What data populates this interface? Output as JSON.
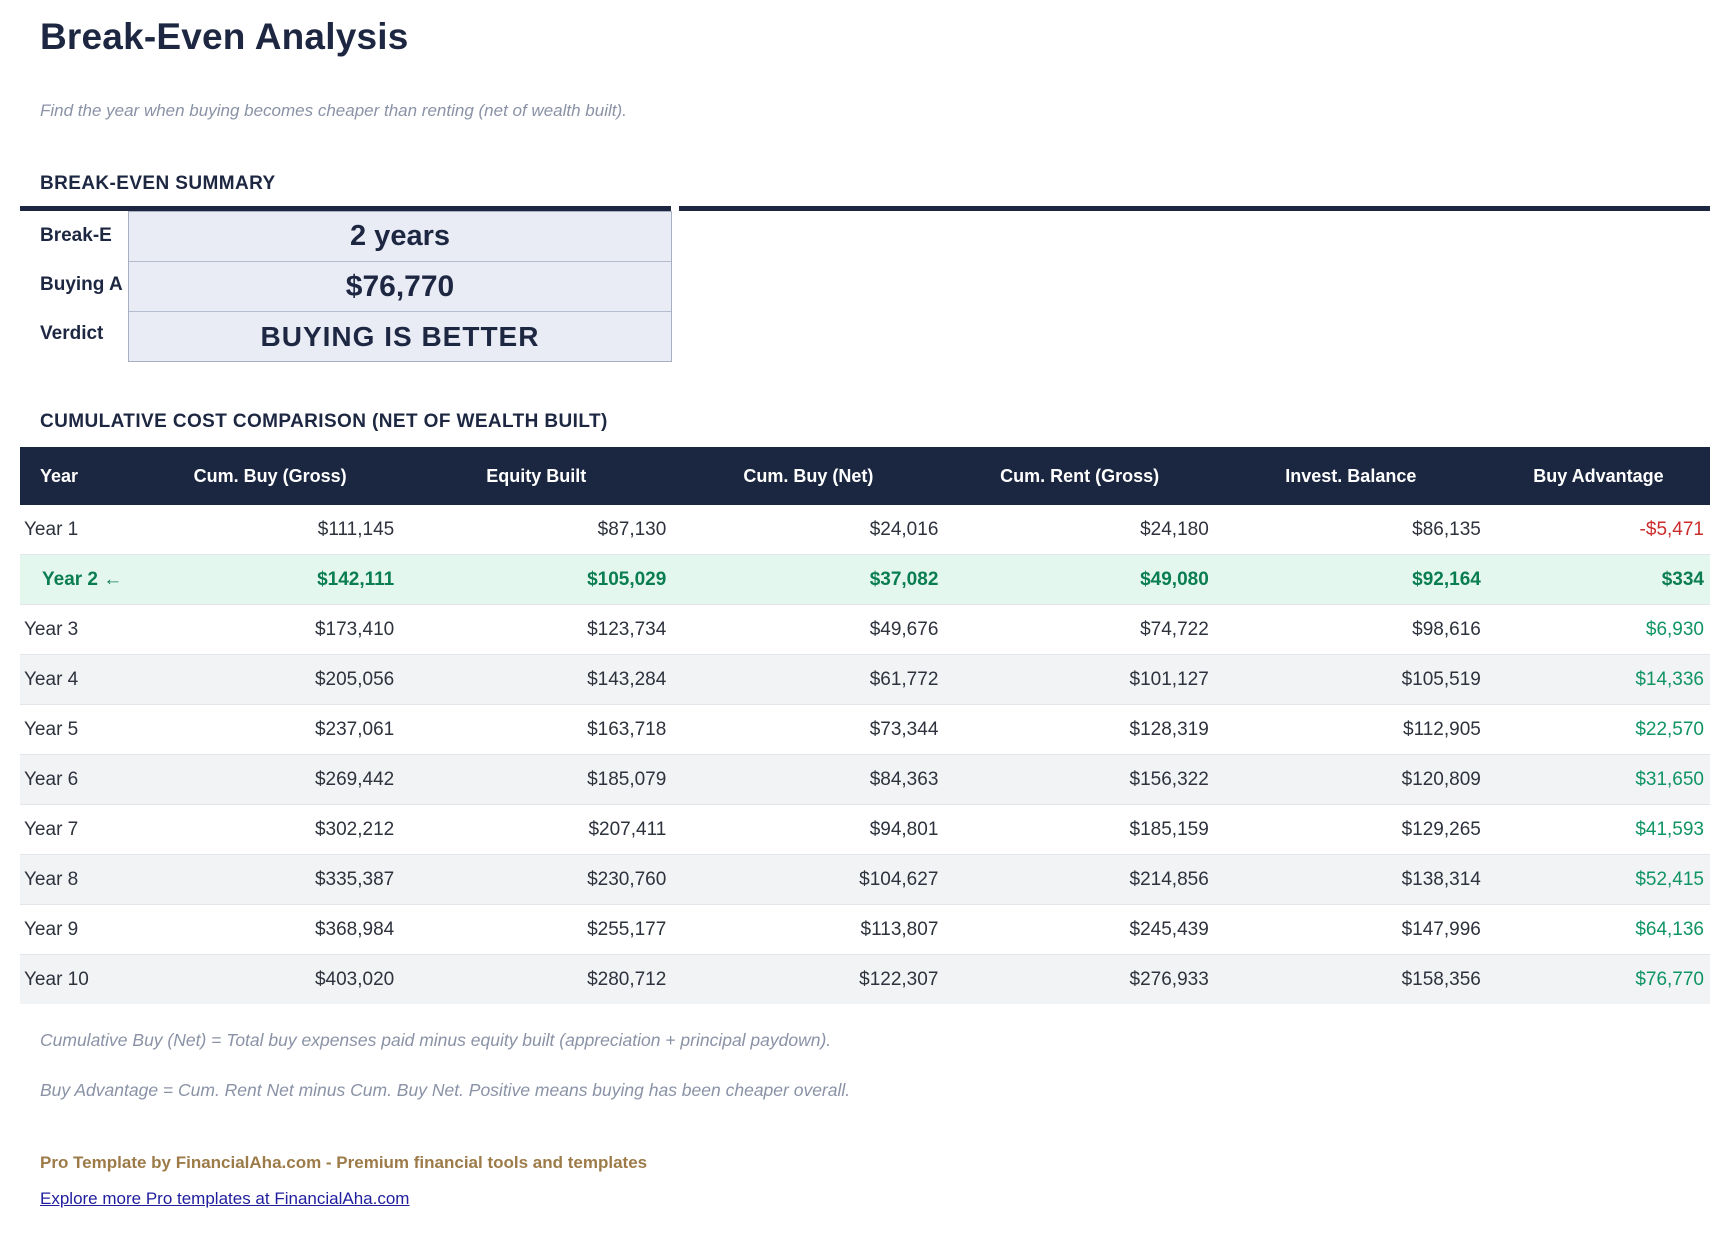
{
  "page": {
    "title": "Break-Even Analysis",
    "subtitle": "Find the year when buying becomes cheaper than renting (net of wealth built)."
  },
  "summary": {
    "heading": "BREAK-EVEN SUMMARY",
    "rows": [
      {
        "label": "Break-E",
        "value": "2 years"
      },
      {
        "label": "Buying A",
        "value": "$76,770"
      },
      {
        "label": "Verdict",
        "value": "BUYING IS BETTER"
      }
    ]
  },
  "comparison": {
    "heading": "CUMULATIVE COST COMPARISON (NET OF WEALTH BUILT)",
    "columns": [
      "Year",
      "Cum. Buy (Gross)",
      "Equity Built",
      "Cum. Buy (Net)",
      "Cum. Rent (Gross)",
      "Invest. Balance",
      "Buy Advantage"
    ],
    "rows": [
      {
        "year": "Year 1",
        "values": [
          "$111,145",
          "$87,130",
          "$24,016",
          "$24,180",
          "$86,135"
        ],
        "advantage": "-$5,471",
        "advantage_negative": true,
        "highlight": false,
        "striped": false
      },
      {
        "year": "Year 2 ←",
        "values": [
          "$142,111",
          "$105,029",
          "$37,082",
          "$49,080",
          "$92,164"
        ],
        "advantage": "$334",
        "advantage_negative": false,
        "highlight": true,
        "striped": false
      },
      {
        "year": "Year 3",
        "values": [
          "$173,410",
          "$123,734",
          "$49,676",
          "$74,722",
          "$98,616"
        ],
        "advantage": "$6,930",
        "advantage_negative": false,
        "highlight": false,
        "striped": false
      },
      {
        "year": "Year 4",
        "values": [
          "$205,056",
          "$143,284",
          "$61,772",
          "$101,127",
          "$105,519"
        ],
        "advantage": "$14,336",
        "advantage_negative": false,
        "highlight": false,
        "striped": true
      },
      {
        "year": "Year 5",
        "values": [
          "$237,061",
          "$163,718",
          "$73,344",
          "$128,319",
          "$112,905"
        ],
        "advantage": "$22,570",
        "advantage_negative": false,
        "highlight": false,
        "striped": false
      },
      {
        "year": "Year 6",
        "values": [
          "$269,442",
          "$185,079",
          "$84,363",
          "$156,322",
          "$120,809"
        ],
        "advantage": "$31,650",
        "advantage_negative": false,
        "highlight": false,
        "striped": true
      },
      {
        "year": "Year 7",
        "values": [
          "$302,212",
          "$207,411",
          "$94,801",
          "$185,159",
          "$129,265"
        ],
        "advantage": "$41,593",
        "advantage_negative": false,
        "highlight": false,
        "striped": false
      },
      {
        "year": "Year 8",
        "values": [
          "$335,387",
          "$230,760",
          "$104,627",
          "$214,856",
          "$138,314"
        ],
        "advantage": "$52,415",
        "advantage_negative": false,
        "highlight": false,
        "striped": true
      },
      {
        "year": "Year 9",
        "values": [
          "$368,984",
          "$255,177",
          "$113,807",
          "$245,439",
          "$147,996"
        ],
        "advantage": "$64,136",
        "advantage_negative": false,
        "highlight": false,
        "striped": false
      },
      {
        "year": "Year 10",
        "values": [
          "$403,020",
          "$280,712",
          "$122,307",
          "$276,933",
          "$158,356"
        ],
        "advantage": "$76,770",
        "advantage_negative": false,
        "highlight": false,
        "striped": true
      }
    ]
  },
  "footnotes": [
    "Cumulative Buy (Net) = Total buy expenses paid minus equity built (appreciation + principal paydown).",
    "Buy Advantage = Cum. Rent Net minus Cum. Buy Net. Positive means buying has been cheaper overall."
  ],
  "footer": {
    "credit": "Pro Template by FinancialAha.com - Premium financial tools and templates",
    "link": "Explore more Pro templates at FinancialAha.com"
  },
  "colors": {
    "navy": "#1d2742",
    "table_header_bg": "#1b2740",
    "green_value": "#109464",
    "green_highlight": "#0a7d52",
    "red_negative": "#cb2c2c",
    "mint_row_bg": "#e4f7ee",
    "stripe_row_bg": "#f2f3f5",
    "summary_box_bg": "#e9ecf5",
    "footer_brown": "#9d7b49",
    "link_blue": "#201d9e",
    "muted_gray": "#8a92a6"
  }
}
